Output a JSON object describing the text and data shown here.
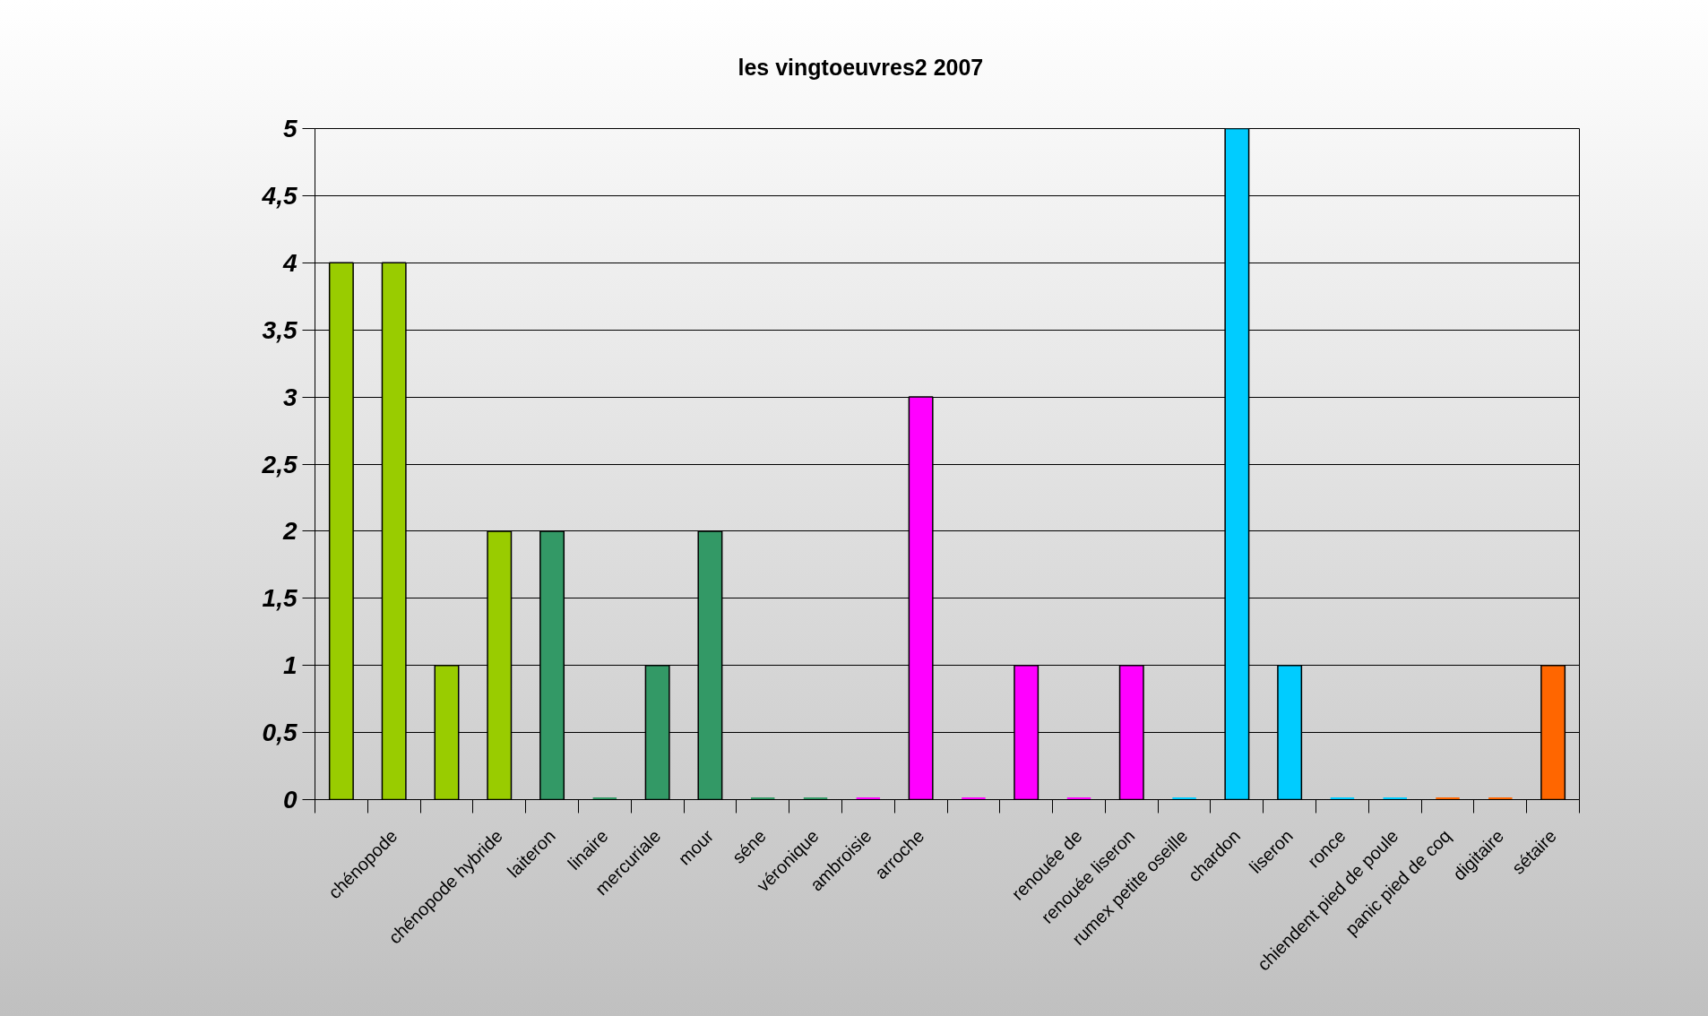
{
  "chart_data": {
    "type": "bar",
    "title": "les vingtoeuvres2 2007",
    "categories": [
      null,
      "chénopode",
      null,
      "chénopode hybride",
      "laiteron",
      "linaire",
      "mercuriale",
      "mour",
      "séne",
      "véronique",
      "ambroisie",
      "arroche",
      null,
      null,
      "renouée de",
      "renouée liseron",
      "rumex petite oseille",
      "chardon",
      "liseron",
      "ronce",
      "chiendent pied de poule",
      "panic pied de coq",
      "digitaire",
      "sétaire"
    ],
    "values": [
      4,
      4,
      1,
      2,
      2,
      0,
      1,
      2,
      0,
      0,
      0,
      3,
      0,
      1,
      0,
      1,
      0,
      5,
      1,
      0,
      0,
      0,
      0,
      1
    ],
    "colors": [
      "#99cc00",
      "#99cc00",
      "#99cc00",
      "#99cc00",
      "#339966",
      "#339966",
      "#339966",
      "#339966",
      "#339966",
      "#339966",
      "#ff00ff",
      "#ff00ff",
      "#ff00ff",
      "#ff00ff",
      "#ff00ff",
      "#ff00ff",
      "#00ccff",
      "#00ccff",
      "#00ccff",
      "#00ccff",
      "#00ccff",
      "#ff6600",
      "#ff6600",
      "#ff6600"
    ],
    "ylim": [
      0,
      5
    ],
    "yticks": [
      0,
      {
        "value": 0.5,
        "label": "0,5"
      },
      1,
      {
        "value": 1.5,
        "label": "1,5"
      },
      2,
      {
        "value": 2.5,
        "label": "2,5"
      },
      3,
      {
        "value": 3.5,
        "label": "3,5"
      },
      4,
      {
        "value": 4.5,
        "label": "4,5"
      },
      5
    ],
    "grid": "y"
  }
}
